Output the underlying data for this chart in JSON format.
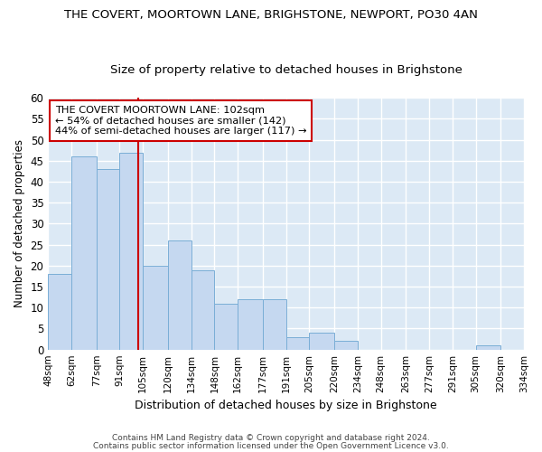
{
  "title": "THE COVERT, MOORTOWN LANE, BRIGHSTONE, NEWPORT, PO30 4AN",
  "subtitle": "Size of property relative to detached houses in Brighstone",
  "xlabel": "Distribution of detached houses by size in Brighstone",
  "ylabel": "Number of detached properties",
  "bin_edges": [
    48,
    62,
    77,
    91,
    105,
    120,
    134,
    148,
    162,
    177,
    191,
    205,
    220,
    234,
    248,
    263,
    277,
    291,
    305,
    320,
    334
  ],
  "bar_heights": [
    18,
    46,
    43,
    47,
    20,
    26,
    19,
    11,
    12,
    12,
    3,
    4,
    2,
    0,
    0,
    0,
    0,
    0,
    1,
    0
  ],
  "bar_color": "#c5d8f0",
  "bar_edge_color": "#7aaed6",
  "red_line_x": 102,
  "red_line_color": "#cc0000",
  "ylim": [
    0,
    60
  ],
  "yticks": [
    0,
    5,
    10,
    15,
    20,
    25,
    30,
    35,
    40,
    45,
    50,
    55,
    60
  ],
  "tick_labels": [
    "48sqm",
    "62sqm",
    "77sqm",
    "91sqm",
    "105sqm",
    "120sqm",
    "134sqm",
    "148sqm",
    "162sqm",
    "177sqm",
    "191sqm",
    "205sqm",
    "220sqm",
    "234sqm",
    "248sqm",
    "263sqm",
    "277sqm",
    "291sqm",
    "305sqm",
    "320sqm",
    "334sqm"
  ],
  "annotation_lines": [
    "THE COVERT MOORTOWN LANE: 102sqm",
    "← 54% of detached houses are smaller (142)",
    "44% of semi-detached houses are larger (117) →"
  ],
  "annotation_box_color": "#ffffff",
  "annotation_box_edge": "#cc0000",
  "footer1": "Contains HM Land Registry data © Crown copyright and database right 2024.",
  "footer2": "Contains public sector information licensed under the Open Government Licence v3.0.",
  "bg_color": "#dce9f5",
  "grid_color": "#ffffff",
  "fig_bg_color": "#ffffff",
  "title_fontsize": 9.5,
  "subtitle_fontsize": 9.5,
  "title_fontweight": "normal"
}
